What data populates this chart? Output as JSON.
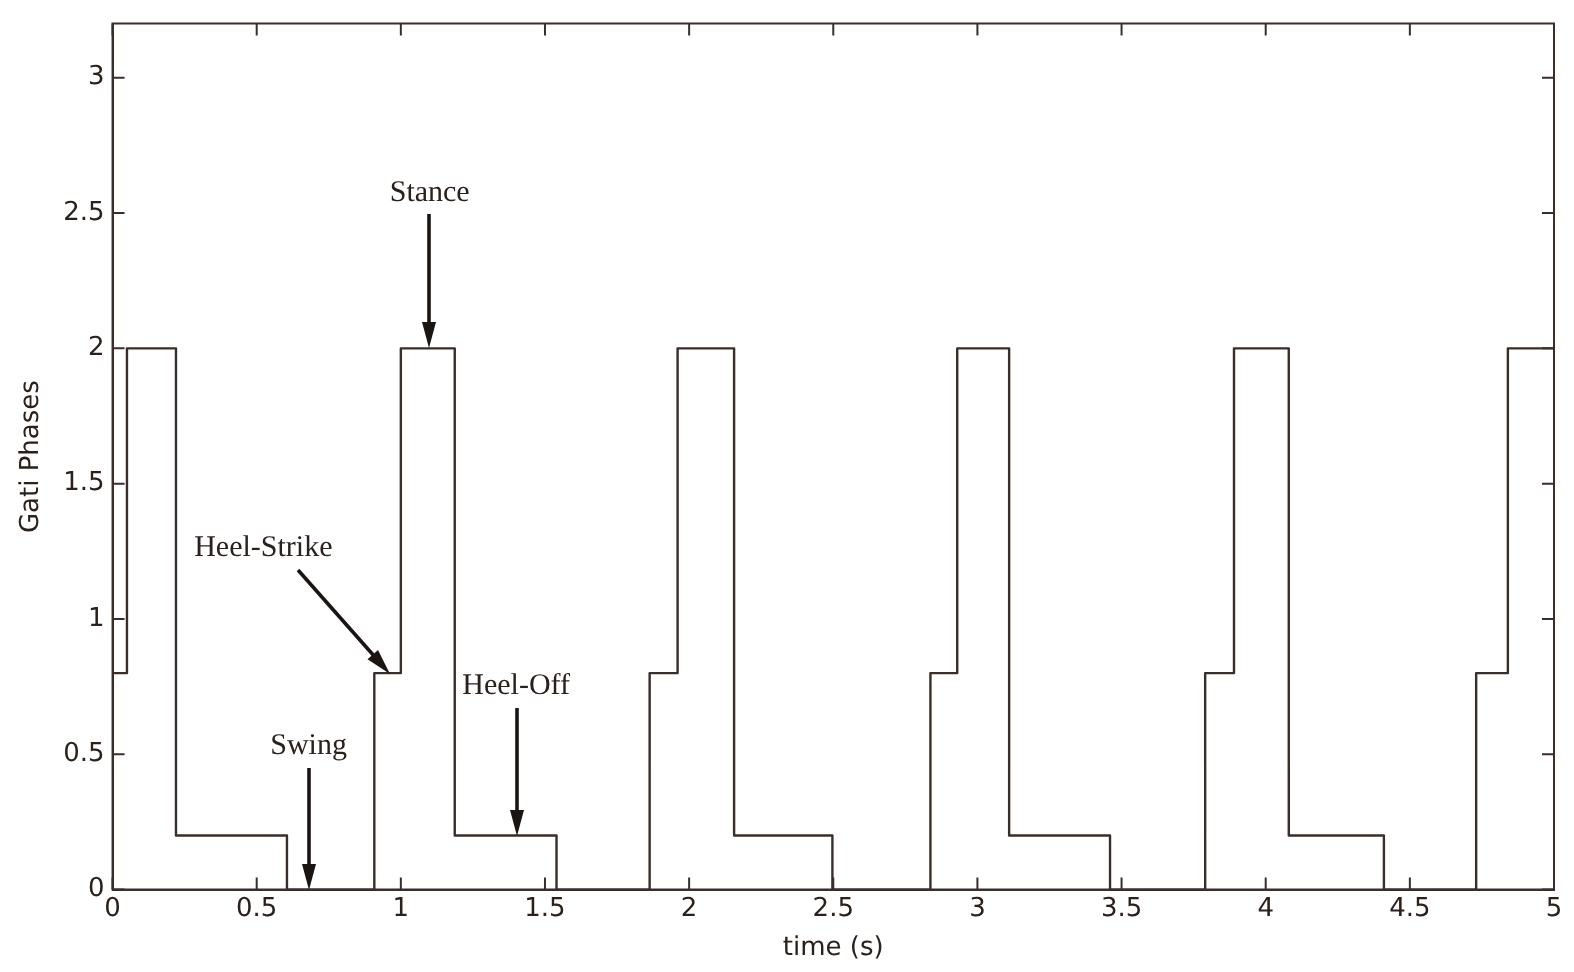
{
  "chart_data": {
    "type": "step",
    "xlabel": "time (s)",
    "ylabel": "Gati Phases",
    "xlim": [
      0,
      5
    ],
    "ylim": [
      0,
      3.2
    ],
    "xticks": [
      0,
      0.5,
      1,
      1.5,
      2,
      2.5,
      3,
      3.5,
      4,
      4.5,
      5
    ],
    "yticks": [
      0,
      0.5,
      1,
      1.5,
      2,
      2.5,
      3
    ],
    "grid": false,
    "legend": false,
    "marker": "none",
    "line_style": "solid",
    "series": [
      {
        "color": "#3a2e2a",
        "x": [
          0,
          0,
          0.05,
          0.22,
          0.605,
          0.908,
          1.0,
          1.187,
          1.54,
          1.863,
          1.96,
          2.156,
          2.497,
          2.837,
          2.93,
          3.11,
          3.46,
          3.79,
          3.89,
          4.08,
          4.41,
          4.73,
          4.84,
          5
        ],
        "values": [
          0,
          0.8,
          2,
          0.2,
          0,
          0.8,
          2,
          0.2,
          0,
          0.8,
          2,
          0.2,
          0,
          0.8,
          2,
          0.2,
          0,
          0.8,
          2,
          0.2,
          0,
          0.8,
          2,
          2
        ]
      }
    ],
    "annotations": [
      "Stance",
      "Heel-Strike",
      "Heel-Off",
      "Swing"
    ]
  }
}
